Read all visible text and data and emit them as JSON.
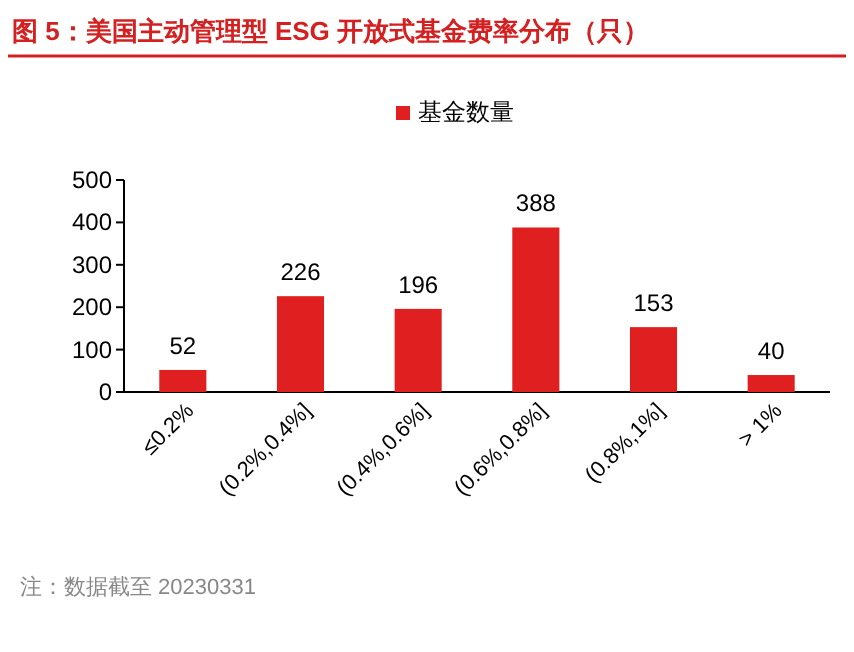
{
  "chart_data": {
    "type": "bar",
    "title": "图 5：美国主动管理型 ESG 开放式基金费率分布（只）",
    "categories": [
      "≤0.2%",
      "(0.2%,0.4%]",
      "(0.4%,0.6%]",
      "(0.6%,0.8%]",
      "(0.8%,1%]",
      "> 1%"
    ],
    "series": [
      {
        "name": "基金数量",
        "color": "#e02020",
        "values": [
          52,
          226,
          196,
          388,
          153,
          40
        ]
      }
    ],
    "ylim": [
      0,
      500
    ],
    "yticks": [
      0,
      100,
      200,
      300,
      400,
      500
    ],
    "data_labels": true,
    "legend": "top",
    "grid": false,
    "annotations": [
      "注：数据截至 20230331"
    ]
  }
}
